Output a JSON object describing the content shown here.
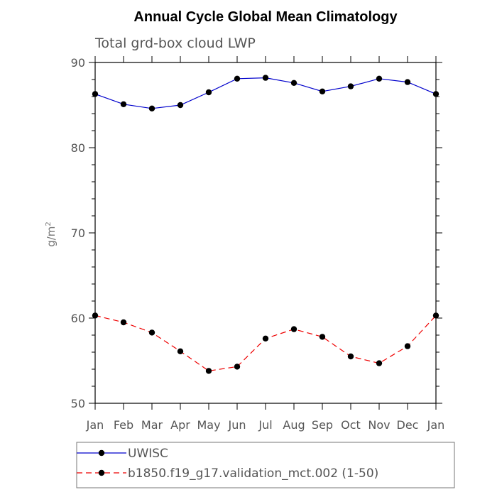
{
  "chart_data": {
    "type": "line",
    "title": "Annual Cycle Global Mean Climatology",
    "subtitle": "Total grd-box cloud LWP",
    "ylabel": "g/m",
    "ylabel_sup": "2",
    "categories": [
      "Jan",
      "Feb",
      "Mar",
      "Apr",
      "May",
      "Jun",
      "Jul",
      "Aug",
      "Sep",
      "Oct",
      "Nov",
      "Dec",
      "Jan"
    ],
    "ylim": [
      50,
      90
    ],
    "y_ticks": [
      50,
      60,
      70,
      80,
      90
    ],
    "series": [
      {
        "name": "UWISC",
        "color": "#0000cc",
        "dash": "solid",
        "values": [
          86.3,
          85.1,
          84.6,
          85.0,
          86.5,
          88.1,
          88.2,
          87.6,
          86.6,
          87.2,
          88.1,
          87.7,
          86.3
        ]
      },
      {
        "name": "b1850.f19_g17.validation_mct.002 (1-50)",
        "color": "#ee0000",
        "dash": "dashed",
        "values": [
          60.3,
          59.5,
          58.3,
          56.1,
          53.8,
          54.3,
          57.6,
          58.7,
          57.8,
          55.5,
          54.7,
          56.7,
          60.3
        ]
      }
    ],
    "legend_position": "bottom"
  }
}
